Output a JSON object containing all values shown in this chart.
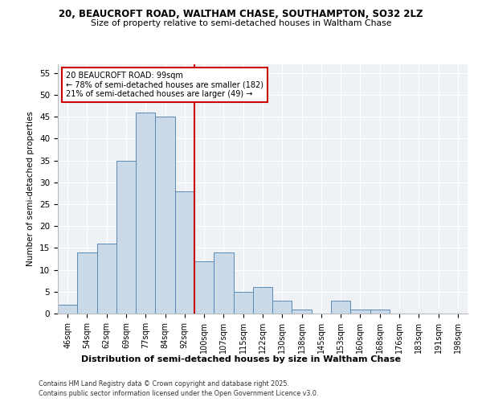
{
  "title1": "20, BEAUCROFT ROAD, WALTHAM CHASE, SOUTHAMPTON, SO32 2LZ",
  "title2": "Size of property relative to semi-detached houses in Waltham Chase",
  "xlabel": "Distribution of semi-detached houses by size in Waltham Chase",
  "ylabel": "Number of semi-detached properties",
  "bin_labels": [
    "46sqm",
    "54sqm",
    "62sqm",
    "69sqm",
    "77sqm",
    "84sqm",
    "92sqm",
    "100sqm",
    "107sqm",
    "115sqm",
    "122sqm",
    "130sqm",
    "138sqm",
    "145sqm",
    "153sqm",
    "160sqm",
    "168sqm",
    "176sqm",
    "183sqm",
    "191sqm",
    "198sqm"
  ],
  "bin_values": [
    2,
    14,
    16,
    35,
    46,
    45,
    28,
    12,
    14,
    5,
    6,
    3,
    1,
    0,
    3,
    1,
    1,
    0,
    0,
    0,
    0
  ],
  "bar_color": "#c9d9e8",
  "bar_edge_color": "#5a8ab5",
  "vline_color": "#cc0000",
  "annotation_title": "20 BEAUCROFT ROAD: 99sqm",
  "annotation_line1": "← 78% of semi-detached houses are smaller (182)",
  "annotation_line2": "21% of semi-detached houses are larger (49) →",
  "annotation_box_color": "#cc0000",
  "ylim": [
    0,
    57
  ],
  "yticks": [
    0,
    5,
    10,
    15,
    20,
    25,
    30,
    35,
    40,
    45,
    50,
    55
  ],
  "footnote1": "Contains HM Land Registry data © Crown copyright and database right 2025.",
  "footnote2": "Contains public sector information licensed under the Open Government Licence v3.0.",
  "bg_color": "#eef2f7"
}
